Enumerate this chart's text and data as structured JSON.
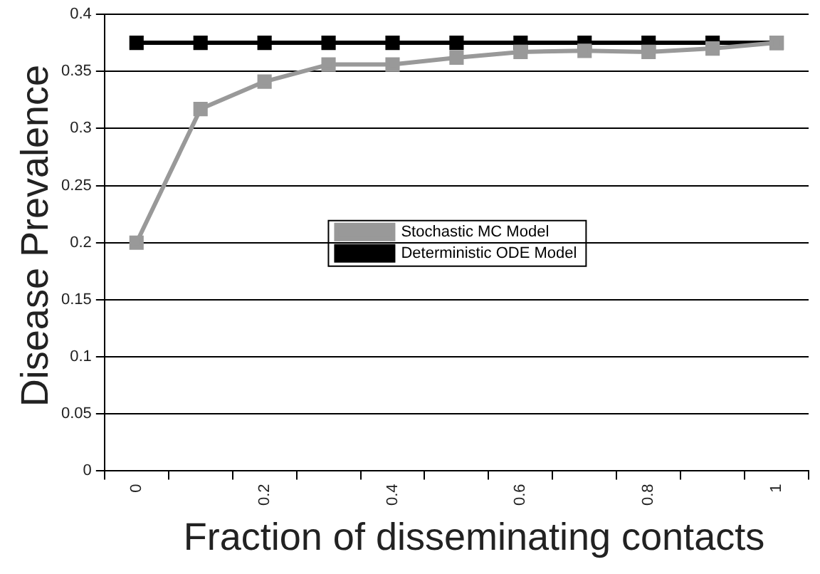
{
  "chart_data": {
    "type": "line",
    "xlabel": "Fraction of disseminating contacts",
    "ylabel": "Disease Prevalence",
    "categories": [
      "0",
      null,
      "0.2",
      null,
      "0.4",
      null,
      "0.6",
      null,
      "0.8",
      null,
      "1"
    ],
    "series": [
      {
        "name": "Deterministic ODE Model",
        "color": "#000000",
        "values": [
          0.375,
          0.375,
          0.375,
          0.375,
          0.375,
          0.375,
          0.375,
          0.375,
          0.375,
          0.375,
          0.375
        ]
      },
      {
        "name": "Stochastic MC Model",
        "color": "#999999",
        "values": [
          0.2,
          0.317,
          0.341,
          0.356,
          0.356,
          0.362,
          0.367,
          0.368,
          0.367,
          0.37,
          0.375
        ]
      }
    ],
    "ylim": [
      0,
      0.4
    ],
    "yticks": [
      0,
      0.05,
      0.1,
      0.15,
      0.2,
      0.25,
      0.3,
      0.35,
      0.4
    ],
    "grid": "y",
    "legend": "center",
    "marker": "square",
    "line_style": "solid"
  }
}
